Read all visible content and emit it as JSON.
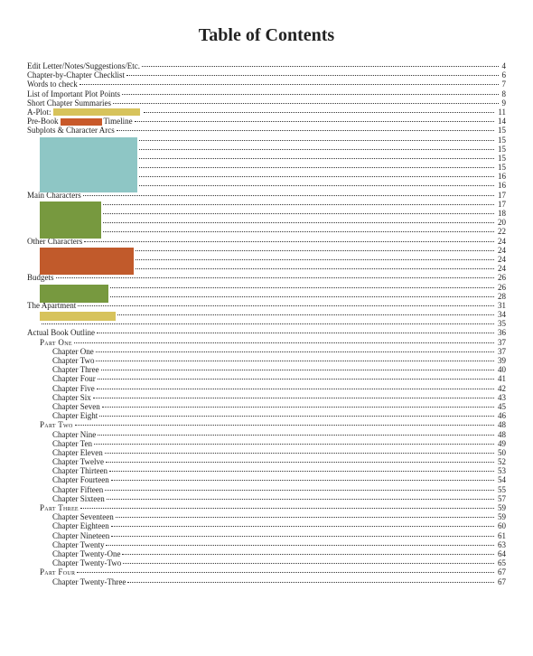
{
  "title": "Table of Contents",
  "title_fontsize": 20,
  "colors": {
    "yellow": "#d7c35c",
    "orange": "#c8592a",
    "teal": "#8ec6c5",
    "green": "#77993f",
    "dkorange": "#c15a2b",
    "green2": "#77993f",
    "yellow2": "#d7c35c"
  },
  "entries": [
    {
      "type": "row",
      "indent": 0,
      "label": "Edit Letter/Notes/Suggestions/Etc.",
      "page": "4"
    },
    {
      "type": "row",
      "indent": 0,
      "label": "Chapter-by-Chapter Checklist",
      "page": "6"
    },
    {
      "type": "row",
      "indent": 0,
      "label": "Words to check",
      "page": "7"
    },
    {
      "type": "row",
      "indent": 0,
      "label": "List of Important Plot Points",
      "page": "8"
    },
    {
      "type": "row",
      "indent": 0,
      "label": "Short Chapter Summaries",
      "page": "9"
    },
    {
      "type": "row",
      "indent": 0,
      "label_parts": [
        {
          "text": "A-Plot: "
        },
        {
          "block": {
            "color": "yellow",
            "w": 96
          }
        }
      ],
      "page": "11"
    },
    {
      "type": "row",
      "indent": 0,
      "label_parts": [
        {
          "text": "Pre-Book "
        },
        {
          "block": {
            "color": "orange",
            "w": 46
          }
        },
        {
          "text": " Timeline"
        }
      ],
      "page": "14"
    },
    {
      "type": "row",
      "indent": 0,
      "label": "Subplots & Character Arcs",
      "page": "15"
    },
    {
      "type": "bigblock",
      "color": "teal",
      "w": 108,
      "h": 60,
      "rows": [
        {
          "page": "15"
        },
        {
          "page": "15"
        },
        {
          "page": "15"
        },
        {
          "page": "15"
        },
        {
          "page": "16"
        },
        {
          "page": "16"
        }
      ]
    },
    {
      "type": "row",
      "indent": 0,
      "label": "Main Characters",
      "page": "17"
    },
    {
      "type": "bigblock",
      "color": "green",
      "w": 68,
      "h": 40,
      "rows": [
        {
          "page": "17"
        },
        {
          "page": "18"
        },
        {
          "page": "20"
        },
        {
          "page": "22"
        }
      ]
    },
    {
      "type": "row",
      "indent": 0,
      "label": "Other Characters",
      "page": "24"
    },
    {
      "type": "bigblock",
      "color": "dkorange",
      "w": 104,
      "h": 30,
      "rows": [
        {
          "page": "24"
        },
        {
          "page": "24"
        },
        {
          "page": "24"
        }
      ]
    },
    {
      "type": "row",
      "indent": 0,
      "label": "Budgets",
      "page": "26"
    },
    {
      "type": "bigblock",
      "color": "green2",
      "w": 76,
      "h": 20,
      "rows": [
        {
          "page": "26"
        },
        {
          "page": "28"
        }
      ]
    },
    {
      "type": "row",
      "indent": 0,
      "label": "The Apartment",
      "page": "31"
    },
    {
      "type": "bigblock",
      "color": "yellow2",
      "w": 84,
      "h": 10,
      "rows": [
        {
          "page": "34"
        }
      ]
    },
    {
      "type": "row",
      "indent": 1,
      "label": "",
      "page": "35"
    },
    {
      "type": "row",
      "indent": 0,
      "label": "Actual Book Outline",
      "page": "36"
    },
    {
      "type": "row",
      "indent": 1,
      "sc": true,
      "label": "Part One",
      "page": "37"
    },
    {
      "type": "row",
      "indent": 2,
      "label": "Chapter One",
      "page": "37"
    },
    {
      "type": "row",
      "indent": 2,
      "label": "Chapter Two",
      "page": "39"
    },
    {
      "type": "row",
      "indent": 2,
      "label": "Chapter Three",
      "page": "40"
    },
    {
      "type": "row",
      "indent": 2,
      "label": "Chapter Four",
      "page": "41"
    },
    {
      "type": "row",
      "indent": 2,
      "label": "Chapter Five",
      "page": "42"
    },
    {
      "type": "row",
      "indent": 2,
      "label": "Chapter Six",
      "page": "43"
    },
    {
      "type": "row",
      "indent": 2,
      "label": "Chapter Seven",
      "page": "45"
    },
    {
      "type": "row",
      "indent": 2,
      "label": "Chapter Eight",
      "page": "46"
    },
    {
      "type": "row",
      "indent": 1,
      "sc": true,
      "label": "Part Two",
      "page": "48"
    },
    {
      "type": "row",
      "indent": 2,
      "label": "Chapter Nine",
      "page": "48"
    },
    {
      "type": "row",
      "indent": 2,
      "label": "Chapter Ten",
      "page": "49"
    },
    {
      "type": "row",
      "indent": 2,
      "label": "Chapter Eleven",
      "page": "50"
    },
    {
      "type": "row",
      "indent": 2,
      "label": "Chapter Twelve",
      "page": "52"
    },
    {
      "type": "row",
      "indent": 2,
      "label": "Chapter Thirteen",
      "page": "53"
    },
    {
      "type": "row",
      "indent": 2,
      "label": "Chapter Fourteen",
      "page": "54"
    },
    {
      "type": "row",
      "indent": 2,
      "label": "Chapter Fifteen",
      "page": "55"
    },
    {
      "type": "row",
      "indent": 2,
      "label": "Chapter Sixteen",
      "page": "57"
    },
    {
      "type": "row",
      "indent": 1,
      "sc": true,
      "label": "Part Three",
      "page": "59"
    },
    {
      "type": "row",
      "indent": 2,
      "label": "Chapter Seventeen",
      "page": "59"
    },
    {
      "type": "row",
      "indent": 2,
      "label": "Chapter Eighteen",
      "page": "60"
    },
    {
      "type": "row",
      "indent": 2,
      "label": "Chapter Nineteen",
      "page": "61"
    },
    {
      "type": "row",
      "indent": 2,
      "label": "Chapter Twenty",
      "page": "63"
    },
    {
      "type": "row",
      "indent": 2,
      "label": "Chapter Twenty-One",
      "page": "64"
    },
    {
      "type": "row",
      "indent": 2,
      "label": "Chapter Twenty-Two",
      "page": "65"
    },
    {
      "type": "row",
      "indent": 1,
      "sc": true,
      "label": "Part Four",
      "page": "67"
    },
    {
      "type": "row",
      "indent": 2,
      "label": "Chapter Twenty-Three",
      "page": "67"
    }
  ]
}
